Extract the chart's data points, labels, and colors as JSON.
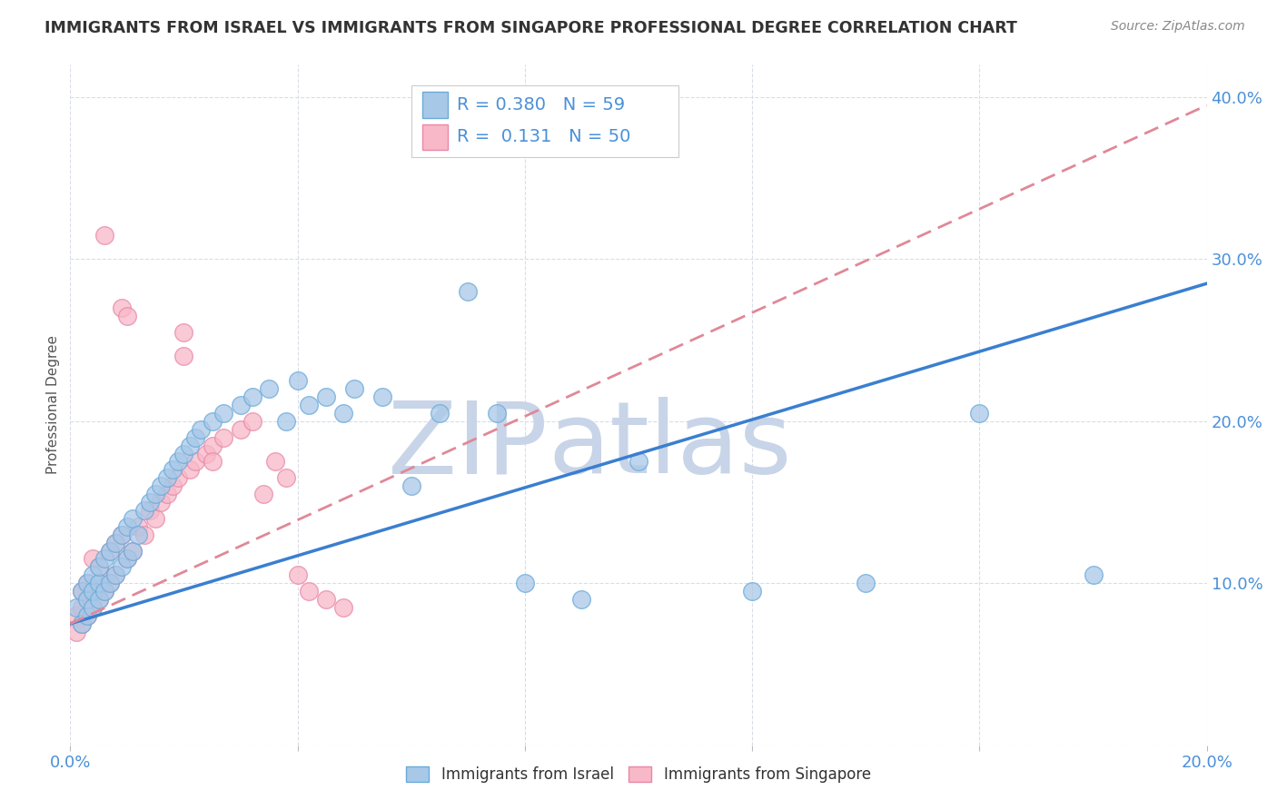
{
  "title": "IMMIGRANTS FROM ISRAEL VS IMMIGRANTS FROM SINGAPORE PROFESSIONAL DEGREE CORRELATION CHART",
  "source": "Source: ZipAtlas.com",
  "ylabel": "Professional Degree",
  "x_min": 0.0,
  "x_max": 0.2,
  "y_min": 0.0,
  "y_max": 0.42,
  "israel_color": "#a8c8e8",
  "singapore_color": "#f8b8c8",
  "israel_edge": "#6aaad8",
  "singapore_edge": "#e888a8",
  "trend_israel_color": "#3a7fd0",
  "trend_singapore_color": "#e08898",
  "trend_singapore_dash": [
    6,
    3
  ],
  "R_israel": 0.38,
  "N_israel": 59,
  "R_singapore": 0.131,
  "N_singapore": 50,
  "israel_trend_x0": 0.0,
  "israel_trend_y0": 0.075,
  "israel_trend_x1": 0.2,
  "israel_trend_y1": 0.285,
  "singapore_trend_x0": 0.0,
  "singapore_trend_y0": 0.075,
  "singapore_trend_x1": 0.2,
  "singapore_trend_y1": 0.395,
  "watermark_zip": "ZIP",
  "watermark_atlas": "atlas",
  "watermark_color": "#c8d4e8",
  "background_color": "#ffffff",
  "grid_color": "#d8dde8",
  "title_color": "#333333",
  "axis_color": "#4a90d9",
  "source_color": "#888888",
  "legend_label_israel": "Immigrants from Israel",
  "legend_label_singapore": "Immigrants from Singapore",
  "israel_scatter_x": [
    0.001,
    0.002,
    0.002,
    0.003,
    0.003,
    0.003,
    0.004,
    0.004,
    0.004,
    0.005,
    0.005,
    0.005,
    0.006,
    0.006,
    0.007,
    0.007,
    0.008,
    0.008,
    0.009,
    0.009,
    0.01,
    0.01,
    0.011,
    0.011,
    0.012,
    0.013,
    0.014,
    0.015,
    0.016,
    0.017,
    0.018,
    0.019,
    0.02,
    0.021,
    0.022,
    0.023,
    0.025,
    0.027,
    0.03,
    0.032,
    0.035,
    0.038,
    0.04,
    0.042,
    0.045,
    0.048,
    0.05,
    0.055,
    0.06,
    0.065,
    0.07,
    0.075,
    0.08,
    0.09,
    0.1,
    0.12,
    0.14,
    0.16,
    0.18
  ],
  "israel_scatter_y": [
    0.085,
    0.075,
    0.095,
    0.08,
    0.09,
    0.1,
    0.085,
    0.095,
    0.105,
    0.09,
    0.1,
    0.11,
    0.095,
    0.115,
    0.1,
    0.12,
    0.105,
    0.125,
    0.11,
    0.13,
    0.115,
    0.135,
    0.12,
    0.14,
    0.13,
    0.145,
    0.15,
    0.155,
    0.16,
    0.165,
    0.17,
    0.175,
    0.18,
    0.185,
    0.19,
    0.195,
    0.2,
    0.205,
    0.21,
    0.215,
    0.22,
    0.2,
    0.225,
    0.21,
    0.215,
    0.205,
    0.22,
    0.215,
    0.16,
    0.205,
    0.28,
    0.205,
    0.1,
    0.09,
    0.175,
    0.095,
    0.1,
    0.205,
    0.105
  ],
  "singapore_scatter_x": [
    0.001,
    0.001,
    0.002,
    0.002,
    0.002,
    0.003,
    0.003,
    0.003,
    0.004,
    0.004,
    0.004,
    0.005,
    0.005,
    0.005,
    0.006,
    0.006,
    0.007,
    0.007,
    0.008,
    0.008,
    0.009,
    0.009,
    0.01,
    0.01,
    0.011,
    0.012,
    0.013,
    0.014,
    0.015,
    0.016,
    0.017,
    0.018,
    0.019,
    0.02,
    0.021,
    0.022,
    0.024,
    0.025,
    0.027,
    0.03,
    0.032,
    0.034,
    0.036,
    0.038,
    0.04,
    0.042,
    0.045,
    0.048,
    0.02,
    0.025
  ],
  "singapore_scatter_y": [
    0.07,
    0.08,
    0.075,
    0.085,
    0.095,
    0.08,
    0.09,
    0.1,
    0.085,
    0.095,
    0.115,
    0.09,
    0.1,
    0.11,
    0.095,
    0.315,
    0.1,
    0.12,
    0.105,
    0.125,
    0.27,
    0.13,
    0.115,
    0.265,
    0.12,
    0.135,
    0.13,
    0.145,
    0.14,
    0.15,
    0.155,
    0.16,
    0.165,
    0.255,
    0.17,
    0.175,
    0.18,
    0.185,
    0.19,
    0.195,
    0.2,
    0.155,
    0.175,
    0.165,
    0.105,
    0.095,
    0.09,
    0.085,
    0.24,
    0.175
  ]
}
